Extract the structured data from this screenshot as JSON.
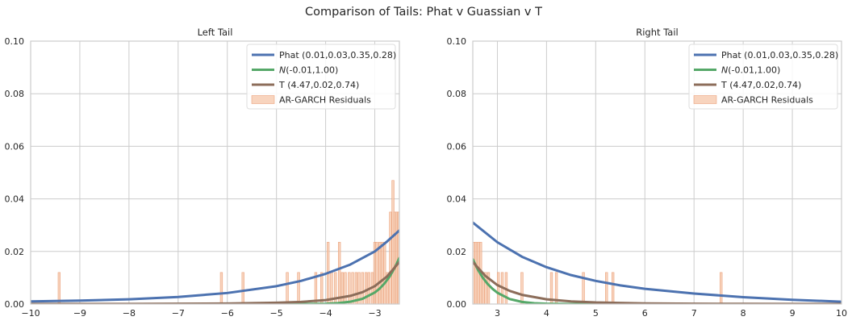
{
  "figure": {
    "suptitle": "Comparison of Tails: Phat v Guassian v T"
  },
  "chart_data": [
    {
      "type": "line",
      "title": "Left Tail",
      "xlabel": "",
      "ylabel": "",
      "xlim": [
        -10,
        -2.5
      ],
      "ylim": [
        0,
        0.1
      ],
      "xticks": [
        -10,
        -9,
        -8,
        -7,
        -6,
        -5,
        -4,
        -3
      ],
      "yticks": [
        0,
        0.02,
        0.04,
        0.06,
        0.08,
        0.1
      ],
      "xtick_labels": [
        "−10",
        "−9",
        "−8",
        "−7",
        "−6",
        "−5",
        "−4",
        "−3"
      ],
      "ytick_labels": [
        "0.00",
        "0.02",
        "0.04",
        "0.06",
        "0.08",
        "0.10"
      ],
      "grid": true,
      "legend_position": "top-right",
      "series": [
        {
          "name": "Phat (0.01,0.03,0.35,0.28)",
          "color": "#4c72b0",
          "style": "line",
          "x": [
            -10,
            -9,
            -8,
            -7,
            -6,
            -5,
            -4.5,
            -4,
            -3.5,
            -3,
            -2.75,
            -2.5
          ],
          "y": [
            0.001,
            0.0013,
            0.0018,
            0.0027,
            0.0042,
            0.0068,
            0.0088,
            0.0115,
            0.015,
            0.02,
            0.0238,
            0.028
          ]
        },
        {
          "name": "N(-0.01,1.00)",
          "name_parts": [
            "N",
            "(-0.01,1.00)"
          ],
          "color": "#55a868",
          "style": "line",
          "x": [
            -10,
            -5,
            -4.5,
            -4,
            -3.75,
            -3.5,
            -3.25,
            -3,
            -2.9,
            -2.8,
            -2.7,
            -2.6,
            -2.5
          ],
          "y": [
            0,
            1.5e-06,
            1.6e-05,
            0.00013,
            0.00035,
            0.00087,
            0.002,
            0.0044,
            0.0059,
            0.0079,
            0.0104,
            0.0136,
            0.0175
          ]
        },
        {
          "name": "T (4.47,0.02,0.74)",
          "color": "#8c6d5a",
          "style": "line",
          "x": [
            -10,
            -9,
            -8,
            -7,
            -6,
            -5,
            -4.5,
            -4,
            -3.5,
            -3.25,
            -3,
            -2.75,
            -2.5
          ],
          "y": [
            2e-05,
            3e-05,
            5e-05,
            0.0001,
            0.0002,
            0.0005,
            0.0008,
            0.0015,
            0.0031,
            0.0045,
            0.0068,
            0.0105,
            0.016
          ]
        },
        {
          "name": "AR-GARCH Residuals",
          "color": "#f5c6a8",
          "style": "bar",
          "bar_width": 0.045,
          "x": [
            -9.42,
            -6.12,
            -5.68,
            -4.78,
            -4.55,
            -4.2,
            -4.08,
            -3.95,
            -3.88,
            -3.8,
            -3.72,
            -3.66,
            -3.6,
            -3.52,
            -3.45,
            -3.38,
            -3.32,
            -3.25,
            -3.18,
            -3.12,
            -3.05,
            -3.0,
            -2.96,
            -2.9,
            -2.85,
            -2.8,
            -2.74,
            -2.68,
            -2.63,
            -2.59,
            -2.55,
            -2.52
          ],
          "y": [
            0.012,
            0.012,
            0.012,
            0.012,
            0.012,
            0.012,
            0.012,
            0.0235,
            0.012,
            0.012,
            0.0235,
            0.012,
            0.012,
            0.012,
            0.012,
            0.012,
            0.012,
            0.012,
            0.012,
            0.012,
            0.012,
            0.0235,
            0.0235,
            0.0235,
            0.0235,
            0.0235,
            0.012,
            0.035,
            0.047,
            0.035,
            0.035,
            0.035
          ]
        }
      ]
    },
    {
      "type": "line",
      "title": "Right Tail",
      "xlabel": "",
      "ylabel": "",
      "xlim": [
        2.5,
        10
      ],
      "ylim": [
        0,
        0.1
      ],
      "xticks": [
        3,
        4,
        5,
        6,
        7,
        8,
        9,
        10
      ],
      "yticks": [
        0,
        0.02,
        0.04,
        0.06,
        0.08,
        0.1
      ],
      "xtick_labels": [
        "3",
        "4",
        "5",
        "6",
        "7",
        "8",
        "9",
        "10"
      ],
      "ytick_labels": [
        "0.00",
        "0.02",
        "0.04",
        "0.06",
        "0.08",
        "0.10"
      ],
      "grid": true,
      "legend_position": "top-right",
      "series": [
        {
          "name": "Phat (0.01,0.03,0.35,0.28)",
          "color": "#4c72b0",
          "style": "line",
          "x": [
            2.5,
            3,
            3.5,
            4,
            4.5,
            5,
            5.5,
            6,
            7,
            8,
            9,
            10
          ],
          "y": [
            0.031,
            0.0235,
            0.018,
            0.014,
            0.011,
            0.0088,
            0.0071,
            0.0058,
            0.004,
            0.0026,
            0.0016,
            0.0009
          ]
        },
        {
          "name": "N(-0.01,1.00)",
          "name_parts": [
            "N",
            "(-0.01,1.00)"
          ],
          "color": "#55a868",
          "style": "line",
          "x": [
            2.5,
            2.6,
            2.7,
            2.8,
            2.9,
            3,
            3.25,
            3.5,
            3.75,
            4,
            4.5,
            5,
            10
          ],
          "y": [
            0.017,
            0.0132,
            0.0101,
            0.0077,
            0.0058,
            0.0043,
            0.0019,
            0.0008,
            0.0003,
            0.00012,
            1.4e-05,
            1.3e-06,
            0
          ]
        },
        {
          "name": "T (4.47,0.02,0.74)",
          "color": "#8c6d5a",
          "style": "line",
          "x": [
            2.5,
            2.75,
            3,
            3.25,
            3.5,
            4,
            4.5,
            5,
            6,
            7,
            8,
            9,
            10
          ],
          "y": [
            0.016,
            0.0108,
            0.0072,
            0.005,
            0.0035,
            0.0018,
            0.001,
            0.0006,
            0.00025,
            0.00012,
            6e-05,
            3e-05,
            2e-05
          ]
        },
        {
          "name": "AR-GARCH Residuals",
          "color": "#f5c6a8",
          "style": "bar",
          "bar_width": 0.045,
          "x": [
            2.52,
            2.56,
            2.61,
            2.66,
            2.71,
            2.76,
            2.82,
            3.02,
            3.1,
            3.18,
            3.5,
            4.1,
            4.2,
            4.75,
            5.22,
            5.35,
            7.55
          ],
          "y": [
            0.0235,
            0.0235,
            0.0235,
            0.0235,
            0.012,
            0.012,
            0.012,
            0.012,
            0.012,
            0.012,
            0.012,
            0.012,
            0.012,
            0.012,
            0.012,
            0.012,
            0.012
          ]
        }
      ]
    }
  ]
}
